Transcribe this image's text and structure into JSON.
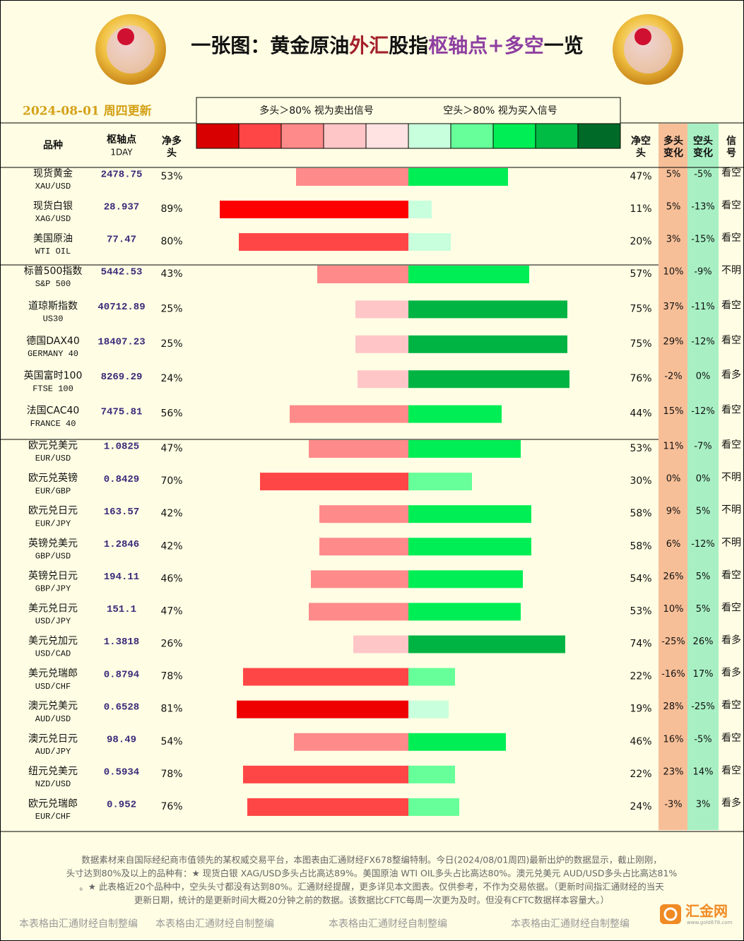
{
  "header": {
    "title_parts": [
      {
        "text": "一张图：黄金原油",
        "color": "#111111"
      },
      {
        "text": "外汇",
        "color": "#a3202a"
      },
      {
        "text": "股指",
        "color": "#111111"
      },
      {
        "text": "枢轴点+多空",
        "color": "#8e3fa0"
      },
      {
        "text": "一览",
        "color": "#111111"
      }
    ],
    "date": "2024-08-01 周四更新"
  },
  "legend": {
    "long_note": "多头＞80% 视为卖出信号",
    "short_note": "空头＞80% 视为买入信号",
    "colors": [
      "#d80000",
      "#ff4646",
      "#ff8a8a",
      "#ffc6c8",
      "#ffe2e2",
      "#c8ffdc",
      "#66ff99",
      "#00ee55",
      "#00bb44",
      "#006a28"
    ]
  },
  "columns": {
    "name": "品种",
    "pivot": "枢轴点",
    "pivot_period": "1DAY",
    "net_long": [
      "净多",
      "头"
    ],
    "net_short": [
      "净空",
      "头"
    ],
    "long_change": [
      "多头",
      "变化"
    ],
    "short_change": [
      "空头",
      "变化"
    ],
    "signal": [
      "信",
      "号"
    ]
  },
  "groups": [
    {
      "rows": [
        {
          "name": "现货黄金",
          "code": "XAU/USD",
          "pivot": 2478.75,
          "long": 53,
          "long_label": "53%",
          "long_color": "#ff8a8a",
          "short": 47,
          "short_label": "47%",
          "short_color": "#00ee55",
          "long_change": "5%",
          "short_change": "-5%",
          "signal": "看空"
        },
        {
          "name": "现货白银",
          "code": "XAG/USD",
          "pivot": 28.937,
          "long": 89,
          "long_label": "89%",
          "long_color": "#ff0000",
          "short": 11,
          "short_label": "11%",
          "short_color": "#c8ffdc",
          "long_change": "5%",
          "short_change": "-13%",
          "signal": "看空"
        },
        {
          "name": "美国原油",
          "code": "WTI OIL",
          "pivot": 77.47,
          "long": 80,
          "long_label": "80%",
          "long_color": "#ff4646",
          "short": 20,
          "short_label": "20%",
          "short_color": "#c8ffdc",
          "long_change": "3%",
          "short_change": "-15%",
          "signal": "看空"
        }
      ]
    },
    {
      "rows": [
        {
          "name": "标普500指数",
          "code": "S&P 500",
          "pivot": 5442.53,
          "long": 43,
          "long_label": "43%",
          "long_color": "#ff8a8a",
          "short": 57,
          "short_label": "57%",
          "short_color": "#00ee55",
          "long_change": "10%",
          "short_change": "-9%",
          "signal": "不明"
        },
        {
          "name": "道琼斯指数",
          "code": "US30",
          "pivot": 40712.89,
          "long": 25,
          "long_label": "25%",
          "long_color": "#ffc6c8",
          "short": 75,
          "short_label": "75%",
          "short_color": "#00b444",
          "long_change": "37%",
          "short_change": "-11%",
          "signal": "看空"
        },
        {
          "name": "德国DAX40",
          "code": "GERMANY 40",
          "pivot": 18407.23,
          "long": 25,
          "long_label": "25%",
          "long_color": "#ffc6c8",
          "short": 75,
          "short_label": "75%",
          "short_color": "#00b444",
          "long_change": "29%",
          "short_change": "-12%",
          "signal": "看空"
        },
        {
          "name": "英国富时100",
          "code": "FTSE 100",
          "pivot": 8269.29,
          "long": 24,
          "long_label": "24%",
          "long_color": "#ffc6c8",
          "short": 76,
          "short_label": "76%",
          "short_color": "#00b444",
          "long_change": "-2%",
          "short_change": "0%",
          "signal": "看多"
        },
        {
          "name": "法国CAC40",
          "code": "FRANCE 40",
          "pivot": 7475.81,
          "long": 56,
          "long_label": "56%",
          "long_color": "#ff8a8a",
          "short": 44,
          "short_label": "44%",
          "short_color": "#00ee55",
          "long_change": "15%",
          "short_change": "-12%",
          "signal": "看空"
        }
      ]
    },
    {
      "rows": [
        {
          "name": "欧元兑美元",
          "code": "EUR/USD",
          "pivot": 1.0825,
          "long": 47,
          "long_label": "47%",
          "long_color": "#ff8a8a",
          "short": 53,
          "short_label": "53%",
          "short_color": "#00ee55",
          "long_change": "11%",
          "short_change": "-7%",
          "signal": "看空"
        },
        {
          "name": "欧元兑英镑",
          "code": "EUR/GBP",
          "pivot": 0.8429,
          "long": 70,
          "long_label": "70%",
          "long_color": "#ff4646",
          "short": 30,
          "short_label": "30%",
          "short_color": "#66ff99",
          "long_change": "0%",
          "short_change": "0%",
          "signal": "不明"
        },
        {
          "name": "欧元兑日元",
          "code": "EUR/JPY",
          "pivot": 163.57,
          "long": 42,
          "long_label": "42%",
          "long_color": "#ff8a8a",
          "short": 58,
          "short_label": "58%",
          "short_color": "#00ee55",
          "long_change": "9%",
          "short_change": "5%",
          "signal": "不明"
        },
        {
          "name": "英镑兑美元",
          "code": "GBP/USD",
          "pivot": 1.2846,
          "long": 42,
          "long_label": "42%",
          "long_color": "#ff8a8a",
          "short": 58,
          "short_label": "58%",
          "short_color": "#00ee55",
          "long_change": "6%",
          "short_change": "-12%",
          "signal": "不明"
        },
        {
          "name": "英镑兑日元",
          "code": "GBP/JPY",
          "pivot": 194.11,
          "long": 46,
          "long_label": "46%",
          "long_color": "#ff8a8a",
          "short": 54,
          "short_label": "54%",
          "short_color": "#00ee55",
          "long_change": "26%",
          "short_change": "5%",
          "signal": "看空"
        },
        {
          "name": "美元兑日元",
          "code": "USD/JPY",
          "pivot": 151.1,
          "long": 47,
          "long_label": "47%",
          "long_color": "#ff8a8a",
          "short": 53,
          "short_label": "53%",
          "short_color": "#00ee55",
          "long_change": "10%",
          "short_change": "5%",
          "signal": "看空"
        },
        {
          "name": "美元兑加元",
          "code": "USD/CAD",
          "pivot": 1.3818,
          "long": 26,
          "long_label": "26%",
          "long_color": "#ffc6c8",
          "short": 74,
          "short_label": "74%",
          "short_color": "#00b444",
          "long_change": "-25%",
          "short_change": "26%",
          "signal": "看多"
        },
        {
          "name": "美元兑瑞郎",
          "code": "USD/CHF",
          "pivot": 0.8794,
          "long": 78,
          "long_label": "78%",
          "long_color": "#ff4646",
          "short": 22,
          "short_label": "22%",
          "short_color": "#66ff99",
          "long_change": "-16%",
          "short_change": "17%",
          "signal": "看多"
        },
        {
          "name": "澳元兑美元",
          "code": "AUD/USD",
          "pivot": 0.6528,
          "long": 81,
          "long_label": "81%",
          "long_color": "#ee0000",
          "short": 19,
          "short_label": "19%",
          "short_color": "#c8ffdc",
          "long_change": "28%",
          "short_change": "-25%",
          "signal": "看空"
        },
        {
          "name": "澳元兑日元",
          "code": "AUD/JPY",
          "pivot": 98.49,
          "long": 54,
          "long_label": "54%",
          "long_color": "#ff8a8a",
          "short": 46,
          "short_label": "46%",
          "short_color": "#00ee55",
          "long_change": "16%",
          "short_change": "-5%",
          "signal": "看空"
        },
        {
          "name": "纽元兑美元",
          "code": "NZD/USD",
          "pivot": 0.5934,
          "long": 78,
          "long_label": "78%",
          "long_color": "#ff4646",
          "short": 22,
          "short_label": "22%",
          "short_color": "#66ff99",
          "long_change": "23%",
          "short_change": "14%",
          "signal": "看空"
        },
        {
          "name": "欧元兑瑞郎",
          "code": "EUR/CHF",
          "pivot": 0.952,
          "long": 76,
          "long_label": "76%",
          "long_color": "#ff4646",
          "short": 24,
          "short_label": "24%",
          "short_color": "#66ff99",
          "long_change": "-3%",
          "short_change": "3%",
          "signal": "看多"
        }
      ]
    }
  ],
  "footer": {
    "lines": [
      "数据素材来自国际经纪商市值领先的某权威交易平台，本图表由汇通财经FX678整编特制。今日(2024/08/01周四)最新出炉的数据显示，截止刚刚，",
      "头寸达到80%及以上的品种有：★ 现货白银 XAG/USD多头占比高达89%。美国原油 WTI OIL多头占比高达80%。澳元兑美元 AUD/USD多头占比高达81%",
      "。★ 此表格近20个品种中，空头头寸都没有达到80%。汇通财经提醒，更多详见本文图表。仅供参考，不作为交易依据。（更新时间指汇通财经的当天",
      "更新日期，统计的是更新时间大概20分钟之前的数据。该数据比CFTC每周一次更为及时。但没有CFTC数据样本容量大。）"
    ],
    "watermark": "本表格由汇通财经自制整编",
    "logo": "汇金网",
    "logo_url": "www.gold678.com"
  }
}
